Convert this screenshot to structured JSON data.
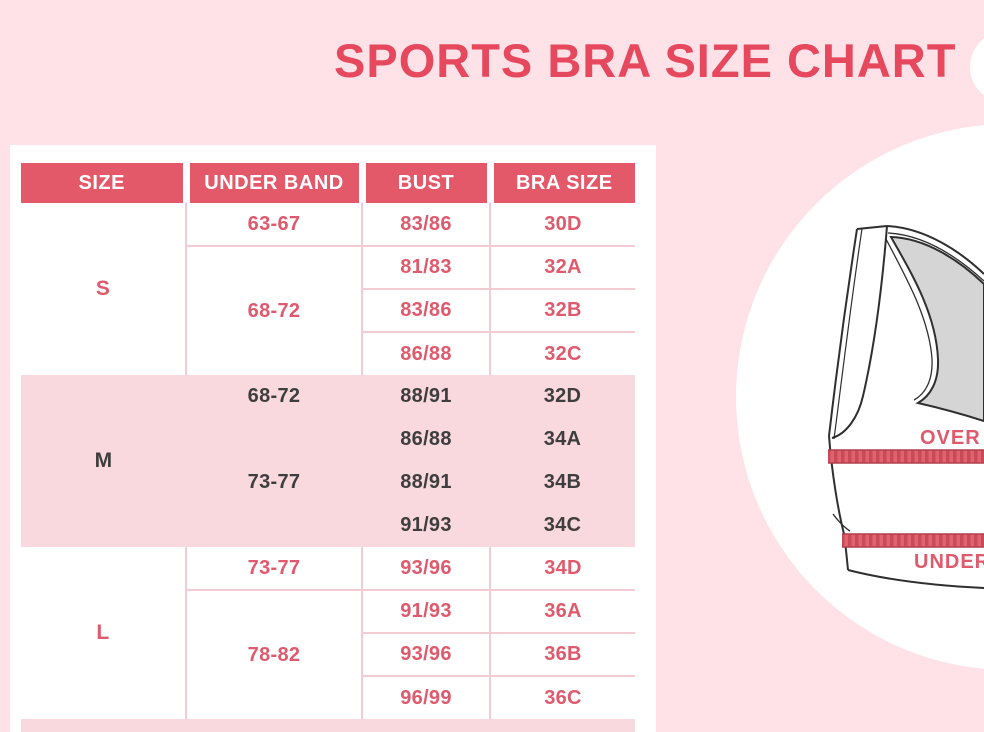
{
  "page": {
    "title": "SPORTS BRA SIZE CHART"
  },
  "table": {
    "headers": [
      "SIZE",
      "UNDER BAND",
      "BUST",
      "BRA SIZE"
    ],
    "sections": [
      {
        "size": "S",
        "theme": "light",
        "bands": [
          {
            "under_band": "63-67",
            "rows": [
              {
                "bust": "83/86",
                "bra_size": "30D"
              }
            ]
          },
          {
            "under_band": "68-72",
            "rows": [
              {
                "bust": "81/83",
                "bra_size": "32A"
              },
              {
                "bust": "83/86",
                "bra_size": "32B"
              },
              {
                "bust": "86/88",
                "bra_size": "32C"
              }
            ]
          }
        ]
      },
      {
        "size": "M",
        "theme": "pink",
        "bands": [
          {
            "under_band": "68-72",
            "rows": [
              {
                "bust": "88/91",
                "bra_size": "32D"
              }
            ]
          },
          {
            "under_band": "73-77",
            "rows": [
              {
                "bust": "86/88",
                "bra_size": "34A"
              },
              {
                "bust": "88/91",
                "bra_size": "34B"
              },
              {
                "bust": "91/93",
                "bra_size": "34C"
              }
            ]
          }
        ]
      },
      {
        "size": "L",
        "theme": "light",
        "bands": [
          {
            "under_band": "73-77",
            "rows": [
              {
                "bust": "93/96",
                "bra_size": "34D"
              }
            ]
          },
          {
            "under_band": "78-82",
            "rows": [
              {
                "bust": "91/93",
                "bra_size": "36A"
              },
              {
                "bust": "93/96",
                "bra_size": "36B"
              },
              {
                "bust": "96/99",
                "bra_size": "36C"
              }
            ]
          }
        ]
      }
    ]
  },
  "chart_data": {
    "type": "table",
    "title": "SPORTS BRA SIZE CHART",
    "columns": [
      "SIZE",
      "UNDER BAND",
      "BUST",
      "BRA SIZE"
    ],
    "rows": [
      [
        "S",
        "63-67",
        "83/86",
        "30D"
      ],
      [
        "S",
        "68-72",
        "81/83",
        "32A"
      ],
      [
        "S",
        "68-72",
        "83/86",
        "32B"
      ],
      [
        "S",
        "68-72",
        "86/88",
        "32C"
      ],
      [
        "M",
        "68-72",
        "88/91",
        "32D"
      ],
      [
        "M",
        "73-77",
        "86/88",
        "34A"
      ],
      [
        "M",
        "73-77",
        "88/91",
        "34B"
      ],
      [
        "M",
        "73-77",
        "91/93",
        "34C"
      ],
      [
        "L",
        "73-77",
        "93/96",
        "34D"
      ],
      [
        "L",
        "78-82",
        "91/93",
        "36A"
      ],
      [
        "L",
        "78-82",
        "93/96",
        "36B"
      ],
      [
        "L",
        "78-82",
        "96/99",
        "36C"
      ]
    ]
  },
  "illustration": {
    "over_bust_label": "OVER",
    "under_bust_label": "UNDER"
  },
  "colors": {
    "page_bg": "#ffe1e8",
    "title": "#e6495e",
    "header_bg": "#e4596a",
    "header_text": "#ffffff",
    "pink_text": "#de5a6c",
    "dark_text": "#3e3e3e",
    "section_pink": "#f9d8de",
    "grid_line": "#f2cbd3",
    "panel_bg": "#ffffff",
    "band_red": "#e2636f",
    "outline": "#2f2f2f"
  }
}
